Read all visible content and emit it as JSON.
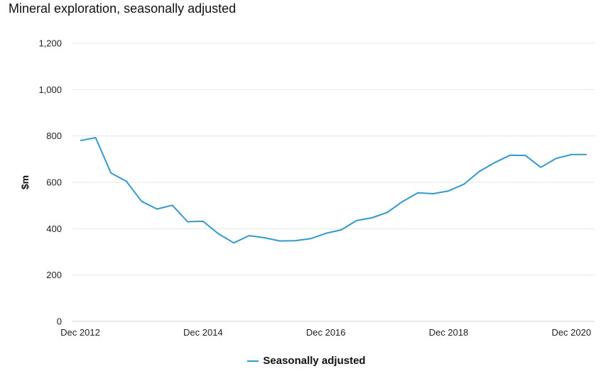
{
  "chart_data": {
    "type": "line",
    "title": "Mineral exploration, seasonally adjusted",
    "ylabel": "$m",
    "xlabel": "",
    "ylim": [
      0,
      1200
    ],
    "yticks": [
      0,
      200,
      400,
      600,
      800,
      1000,
      1200
    ],
    "ytick_labels": [
      "0",
      "200",
      "400",
      "600",
      "800",
      "1,000",
      "1,200"
    ],
    "xtick_labels": [
      "Dec 2012",
      "Dec 2014",
      "Dec 2016",
      "Dec 2018",
      "Dec 2020"
    ],
    "x": [
      "Dec 2012",
      "Mar 2013",
      "Jun 2013",
      "Sep 2013",
      "Dec 2013",
      "Mar 2014",
      "Jun 2014",
      "Sep 2014",
      "Dec 2014",
      "Mar 2015",
      "Jun 2015",
      "Sep 2015",
      "Dec 2015",
      "Mar 2016",
      "Jun 2016",
      "Sep 2016",
      "Dec 2016",
      "Mar 2017",
      "Jun 2017",
      "Sep 2017",
      "Dec 2017",
      "Mar 2018",
      "Jun 2018",
      "Sep 2018",
      "Dec 2018",
      "Mar 2019",
      "Jun 2019",
      "Sep 2019",
      "Dec 2019",
      "Mar 2020",
      "Jun 2020",
      "Sep 2020",
      "Dec 2020",
      "Mar 2021"
    ],
    "series": [
      {
        "name": "Seasonally adjusted",
        "color": "#3399cc",
        "values": [
          780,
          793,
          640,
          605,
          518,
          485,
          501,
          430,
          432,
          378,
          339,
          370,
          361,
          347,
          348,
          357,
          380,
          395,
          435,
          447,
          470,
          517,
          555,
          551,
          563,
          592,
          647,
          685,
          717,
          716,
          665,
          703,
          720,
          720
        ]
      }
    ],
    "grid": true,
    "legend_position": "bottom"
  }
}
